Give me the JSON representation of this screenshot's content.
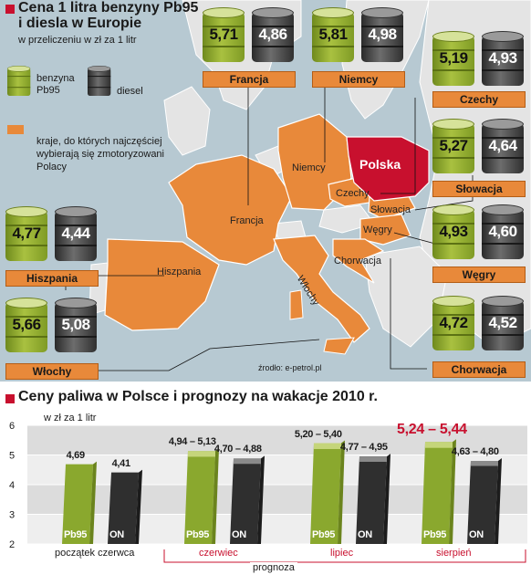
{
  "map": {
    "title": "Cena 1 litra benzyny Pb95 i diesla w Europie",
    "title_line1": "Cena 1 litra benzyny Pb95",
    "title_line2": "i diesla w Europie",
    "subtitle": "w przeliczeniu w zł za 1 litr",
    "legend": {
      "pb95_line1": "benzyna",
      "pb95_line2": "Pb95",
      "diesel": "diesel",
      "orange_note_line1": "kraje, do których najczęściej",
      "orange_note_line2": "wybierają się zmotoryzowani",
      "orange_note_line3": "Polacy"
    },
    "source": "źrodło: e-petrol.pl",
    "colors": {
      "pb95": "#8aa82e",
      "diesel": "#3c3c3c",
      "orange": "#e8893a",
      "poland": "#c8102e",
      "sea": "#b7c9d2"
    },
    "countries": [
      {
        "name": "Francja",
        "pb95": "5,71",
        "diesel": "4,86"
      },
      {
        "name": "Niemcy",
        "pb95": "5,81",
        "diesel": "4,98"
      },
      {
        "name": "Czechy",
        "pb95": "5,19",
        "diesel": "4,93"
      },
      {
        "name": "Słowacja",
        "pb95": "5,27",
        "diesel": "4,64"
      },
      {
        "name": "Hiszpania",
        "pb95": "4,77",
        "diesel": "4,44"
      },
      {
        "name": "Węgry",
        "pb95": "4,93",
        "diesel": "4,60"
      },
      {
        "name": "Włochy",
        "pb95": "5,66",
        "diesel": "5,08"
      },
      {
        "name": "Chorwacja",
        "pb95": "4,72",
        "diesel": "4,52"
      }
    ],
    "map_labels": {
      "polska": "Polska",
      "niemcy": "Niemcy",
      "francja": "Francja",
      "czechy": "Czechy",
      "slowacja": "Słowacja",
      "wegry": "Węgry",
      "chorwacja": "Chorwacja",
      "hiszpania": "Hiszpania",
      "wlochy": "Włochy"
    }
  },
  "chart_data": {
    "type": "bar",
    "title": "Ceny paliwa w Polsce i prognozy na wakacje 2010 r.",
    "ylabel": "w zł za 1 litr",
    "ylim": [
      2,
      6
    ],
    "yticks": [
      "2",
      "3",
      "4",
      "5",
      "6"
    ],
    "categories": [
      "początek czerwca",
      "czerwiec",
      "lipiec",
      "sierpień"
    ],
    "forecast_group_label": "prognoza",
    "bar_label_pb95": "Pb95",
    "bar_label_on": "ON",
    "series": [
      {
        "name": "Pb95",
        "values": [
          4.69,
          5.13,
          5.4,
          5.44
        ],
        "labels": [
          "4,69",
          "4,94 – 5,13",
          "5,20 – 5,40",
          "5,24 – 5,44"
        ]
      },
      {
        "name": "ON",
        "values": [
          4.41,
          4.88,
          4.95,
          4.8
        ],
        "labels": [
          "4,41",
          "4,70 – 4,88",
          "4,77 – 4,95",
          "4,63 – 4,80"
        ]
      }
    ],
    "ranges": {
      "Pb95": [
        [
          4.69,
          4.69
        ],
        [
          4.94,
          5.13
        ],
        [
          5.2,
          5.4
        ],
        [
          5.24,
          5.44
        ]
      ],
      "ON": [
        [
          4.41,
          4.41
        ],
        [
          4.7,
          4.88
        ],
        [
          4.77,
          4.95
        ],
        [
          4.63,
          4.8
        ]
      ]
    },
    "highlight_color": "#c8102e"
  }
}
